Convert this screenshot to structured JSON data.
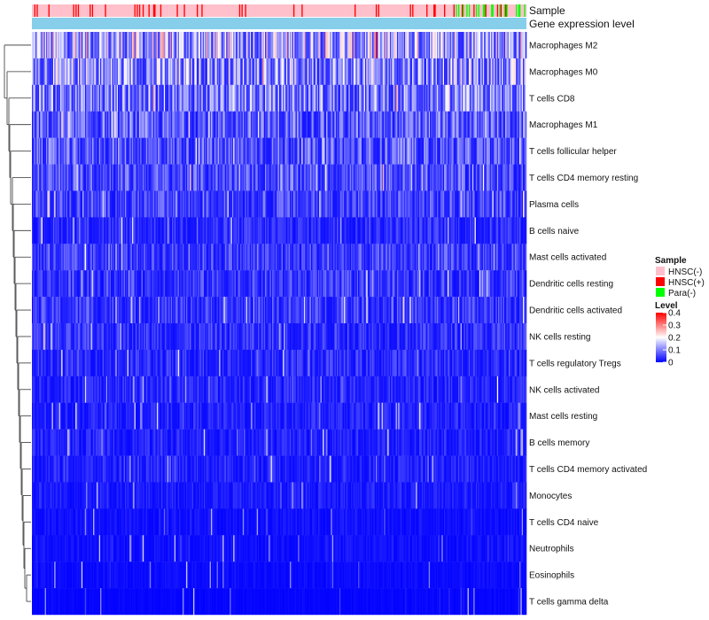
{
  "chart_data": {
    "type": "heatmap",
    "title": "",
    "xlabel": "",
    "ylabel": "",
    "annotations": [
      {
        "name": "Sample"
      },
      {
        "name": "Gene expression level"
      }
    ],
    "rows": [
      {
        "label": "Macrophages M2",
        "mean": 0.16
      },
      {
        "label": "Macrophages M0",
        "mean": 0.13
      },
      {
        "label": "T cells CD8",
        "mean": 0.11
      },
      {
        "label": "Macrophages M1",
        "mean": 0.08
      },
      {
        "label": "T cells follicular helper",
        "mean": 0.075
      },
      {
        "label": "T cells CD4 memory resting",
        "mean": 0.07
      },
      {
        "label": "Plasma cells",
        "mean": 0.06
      },
      {
        "label": "B cells naive",
        "mean": 0.04
      },
      {
        "label": "Mast cells activated",
        "mean": 0.055
      },
      {
        "label": "Dendritic cells resting",
        "mean": 0.05
      },
      {
        "label": "Dendritic cells activated",
        "mean": 0.05
      },
      {
        "label": "NK cells resting",
        "mean": 0.045
      },
      {
        "label": "T cells regulatory  Tregs",
        "mean": 0.04
      },
      {
        "label": "NK cells activated",
        "mean": 0.035
      },
      {
        "label": "Mast cells resting",
        "mean": 0.03
      },
      {
        "label": "B cells memory",
        "mean": 0.03
      },
      {
        "label": "T cells CD4 memory activated",
        "mean": 0.03
      },
      {
        "label": "Monocytes",
        "mean": 0.025
      },
      {
        "label": "T cells CD4 naive",
        "mean": 0.015
      },
      {
        "label": "Neutrophils",
        "mean": 0.015
      },
      {
        "label": "Eosinophils",
        "mean": 0.01
      },
      {
        "label": "T cells gamma delta",
        "mean": 0.005
      }
    ],
    "legend": {
      "sample_title": "Sample",
      "sample_groups": [
        {
          "label": "HNSC(-)",
          "color": "#ffc0cb"
        },
        {
          "label": "HNSC(+)",
          "color": "#ff0000"
        },
        {
          "label": "Para(-)",
          "color": "#00ff00"
        }
      ],
      "level_title": "Level",
      "level_ticks": [
        {
          "value": 0.4,
          "label": "0.4"
        },
        {
          "value": 0.3,
          "label": "0.3"
        },
        {
          "value": 0.2,
          "label": "0.2"
        },
        {
          "value": 0.1,
          "label": "0.1"
        },
        {
          "value": 0,
          "label": "0"
        }
      ],
      "level_range": [
        0,
        0.4
      ],
      "color_low": "#0000ff",
      "color_mid": "#ffffff",
      "color_high": "#ff0000",
      "expression_color": "#87ceeb"
    }
  }
}
